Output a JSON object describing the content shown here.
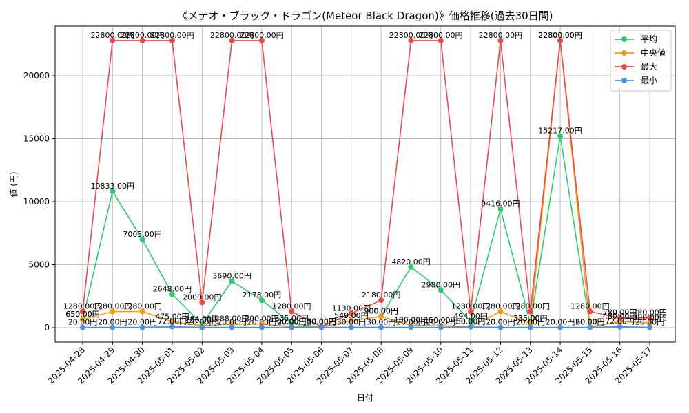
{
  "chart_data": {
    "type": "line",
    "title": "《メテオ・ブラック・ドラゴン(Meteor Black  Dragon)》価格推移(過去30日間)",
    "xlabel": "日付",
    "ylabel": "値 (円)",
    "categories": [
      "2025-04-28",
      "2025-04-29",
      "2025-04-30",
      "2025-05-01",
      "2025-05-02",
      "2025-05-03",
      "2025-05-04",
      "2025-05-05",
      "2025-05-06",
      "2025-05-07",
      "2025-05-08",
      "2025-05-09",
      "2025-05-10",
      "2025-05-11",
      "2025-05-12",
      "2025-05-13",
      "2025-05-14",
      "2025-05-15",
      "2025-05-16",
      "2025-05-17"
    ],
    "ylim": [
      -1150,
      23940
    ],
    "yticks": [
      0,
      5000,
      10000,
      15000,
      20000
    ],
    "grid": true,
    "legend_position": "top-right",
    "label_suffix": "円",
    "series": [
      {
        "name": "平均",
        "color": "#2ecc71",
        "values": [
          650,
          10833,
          7005,
          2648,
          284,
          3690,
          2178,
          335,
          50,
          549,
          900,
          4820,
          2980,
          494,
          9416,
          335,
          15217,
          60,
          480,
          380
        ]
      },
      {
        "name": "中央値",
        "color": "#f39c12",
        "values": [
          650,
          1280,
          1280,
          475,
          150,
          288,
          290,
          80,
          50,
          549,
          900,
          180,
          150,
          80,
          1280,
          335,
          22800,
          60,
          480,
          380
        ]
      },
      {
        "name": "最大",
        "color": "#f04848",
        "values": [
          1280,
          22800,
          22800,
          22800,
          2000,
          22800,
          22800,
          1280,
          80,
          1130,
          2180,
          22800,
          22800,
          1280,
          22800,
          1280,
          22800,
          1280,
          780,
          780
        ]
      },
      {
        "name": "最小",
        "color": "#4a90e2",
        "values": [
          20,
          20,
          20,
          72,
          20,
          20,
          20,
          20,
          20,
          30,
          30,
          20,
          20,
          60,
          20,
          20,
          20,
          20,
          72,
          20
        ]
      }
    ]
  }
}
